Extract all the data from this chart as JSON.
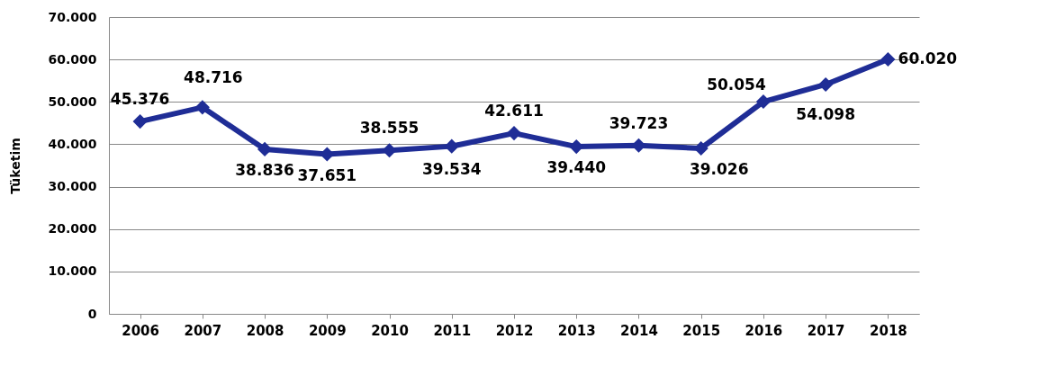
{
  "chart_data": {
    "type": "line",
    "ylabel": "Tüketim",
    "categories": [
      "2006",
      "2007",
      "2008",
      "2009",
      "2010",
      "2011",
      "2012",
      "2013",
      "2014",
      "2015",
      "2016",
      "2017",
      "2018"
    ],
    "series": [
      {
        "color": "#1f2d96",
        "values": [
          45376,
          48716,
          38836,
          37651,
          38555,
          39534,
          42611,
          39440,
          39723,
          39026,
          50054,
          54098,
          60020
        ],
        "value_labels": [
          "45.376",
          "48.716",
          "38.836",
          "37.651",
          "38.555",
          "39.534",
          "42.611",
          "39.440",
          "39.723",
          "39.026",
          "50.054",
          "54.098",
          "60.020"
        ]
      }
    ],
    "ylim": [
      0,
      70000
    ],
    "yticks": [
      0,
      {
        "value": 10000,
        "label": "10.000"
      },
      {
        "value": 20000,
        "label": "20.000"
      },
      {
        "value": 30000,
        "label": "30.000"
      },
      {
        "value": 40000,
        "label": "40.000"
      },
      {
        "value": 50000,
        "label": "50.000"
      },
      {
        "value": 60000,
        "label": "60.000"
      },
      {
        "value": 70000,
        "label": "70.000"
      }
    ],
    "grid": "y",
    "marker": "diamond",
    "line_style": "solid"
  }
}
